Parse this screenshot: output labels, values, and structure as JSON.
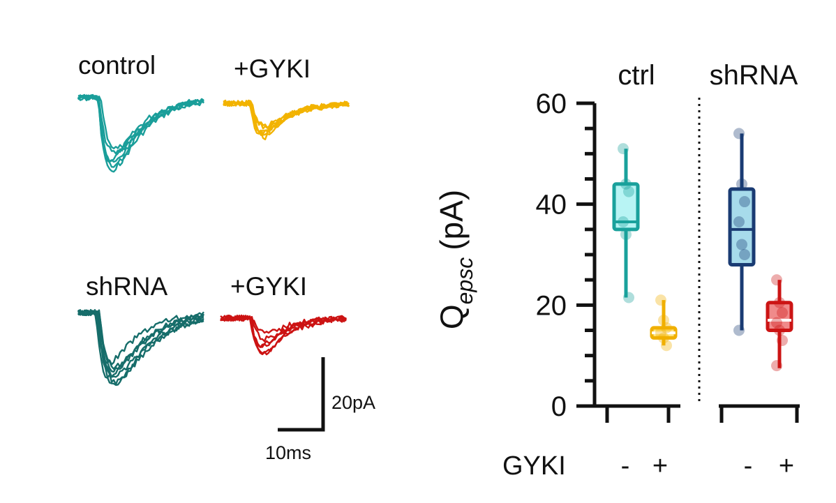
{
  "traces": {
    "labels": {
      "control": "control",
      "control_gyki": "+GYKI",
      "shrna": "shRNA",
      "shrna_gyki": "+GYKI"
    },
    "colors": {
      "control": "#1a9e9a",
      "control_gyki": "#f2b300",
      "shrna": "#166d6a",
      "shrna_gyki": "#cc1313"
    },
    "scale_bar": {
      "current_label": "20pA",
      "time_label": "10ms",
      "current_pA": 20,
      "time_ms": 10
    }
  },
  "chart_data": {
    "type": "box",
    "ylabel_main": "Q",
    "ylabel_sub": "epsc",
    "ylabel_unit": "(pA)",
    "ylim": [
      0,
      60
    ],
    "yticks": [
      0,
      20,
      40,
      60
    ],
    "ytick_labels": [
      "0",
      "20",
      "40",
      "60"
    ],
    "grid": false,
    "groups": [
      {
        "name": "ctrl",
        "conditions": [
          "-",
          "+"
        ]
      },
      {
        "name": "shRNA",
        "conditions": [
          "-",
          "+"
        ]
      }
    ],
    "xlabel": "GYKI",
    "series": [
      {
        "group": "ctrl",
        "gyki": "-",
        "color": "#1aa19c",
        "fill": "#b8f4f4",
        "min": 21.5,
        "q1": 35,
        "median": 36.5,
        "q3": 44,
        "max": 51,
        "points": [
          51,
          44,
          42.5,
          36.5,
          34,
          21.5
        ]
      },
      {
        "group": "ctrl",
        "gyki": "+",
        "color": "#f0b000",
        "fill": "#ffe480",
        "min": 12,
        "q1": 13.5,
        "median": 14.5,
        "q3": 15.5,
        "max": 21,
        "points": [
          21,
          17,
          15.5,
          14.5,
          13.5,
          12
        ]
      },
      {
        "group": "shRNA",
        "gyki": "-",
        "color": "#1a3b73",
        "fill": "#a7dbeb",
        "min": 15,
        "q1": 28,
        "median": 35,
        "q3": 43,
        "max": 54,
        "points": [
          54,
          44,
          40.5,
          36.5,
          32,
          30,
          15
        ]
      },
      {
        "group": "shRNA",
        "gyki": "+",
        "color": "#cc1414",
        "fill": "#f08a8a",
        "min": 7.5,
        "q1": 15,
        "median": 17,
        "q3": 20.5,
        "max": 25,
        "points": [
          25,
          20.5,
          18.5,
          16.5,
          15,
          13,
          8
        ]
      }
    ]
  }
}
